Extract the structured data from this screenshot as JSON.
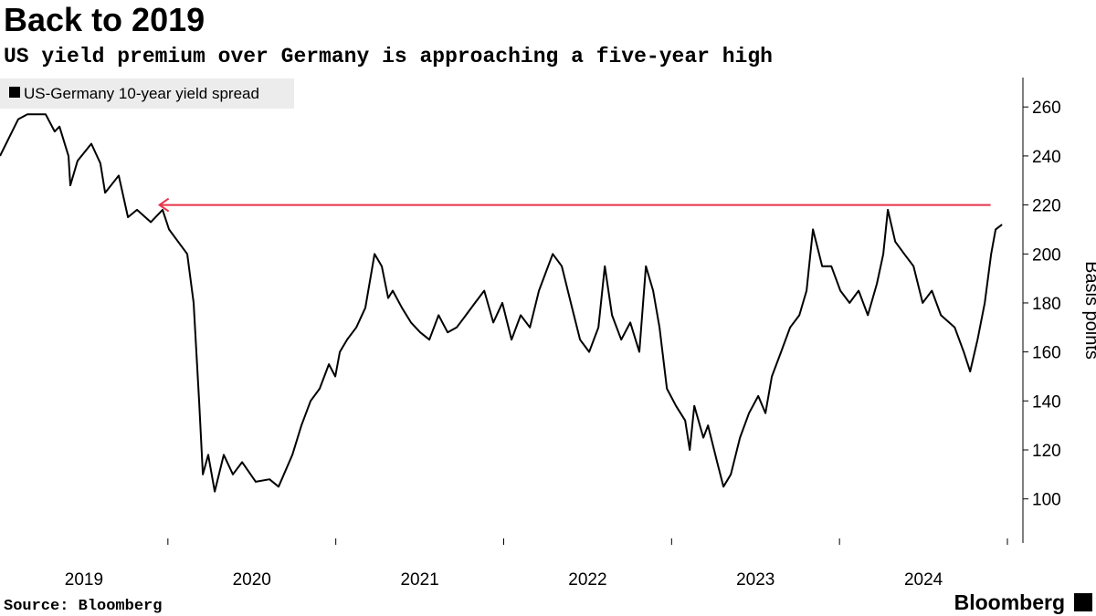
{
  "chart_data": {
    "type": "line",
    "title": "Back to 2019",
    "subtitle": "US yield premium over Germany is approaching a five-year high",
    "source": "Source: Bloomberg",
    "branding": "Bloomberg",
    "y_label": "Basis points",
    "y_axis_side": "right",
    "xlim": [
      2019,
      2025
    ],
    "ylim": [
      82,
      272
    ],
    "yticks": [
      100,
      120,
      140,
      160,
      180,
      200,
      220,
      240,
      260
    ],
    "xticks": [
      {
        "value": 2019.5,
        "label": "2019"
      },
      {
        "value": 2020.5,
        "label": "2020"
      },
      {
        "value": 2021.5,
        "label": "2021"
      },
      {
        "value": 2022.5,
        "label": "2022"
      },
      {
        "value": 2023.5,
        "label": "2023"
      },
      {
        "value": 2024.5,
        "label": "2024"
      }
    ],
    "annotation_line": {
      "y": 220,
      "x_start": 2019.95,
      "x_end": 2024.9,
      "color": "#e8334a"
    },
    "x": [
      2019.0,
      2019.109,
      2019.163,
      2019.272,
      2019.326,
      2019.354,
      2019.408,
      2019.419,
      2019.462,
      2019.544,
      2019.598,
      2019.626,
      2019.707,
      2019.762,
      2019.816,
      2019.898,
      2019.968,
      2020.007,
      2020.061,
      2020.115,
      2020.153,
      2020.186,
      2020.208,
      2020.24,
      2020.279,
      2020.333,
      2020.387,
      2020.442,
      2020.523,
      2020.605,
      2020.659,
      2020.741,
      2020.795,
      2020.85,
      2020.904,
      2020.959,
      2020.997,
      2021.024,
      2021.067,
      2021.122,
      2021.176,
      2021.231,
      2021.274,
      2021.312,
      2021.339,
      2021.394,
      2021.448,
      2021.503,
      2021.557,
      2021.612,
      2021.666,
      2021.72,
      2021.775,
      2021.829,
      2021.884,
      2021.938,
      2021.992,
      2022.047,
      2022.101,
      2022.156,
      2022.21,
      2022.292,
      2022.346,
      2022.4,
      2022.455,
      2022.509,
      2022.564,
      2022.602,
      2022.645,
      2022.7,
      2022.754,
      2022.808,
      2022.847,
      2022.89,
      2022.928,
      2022.972,
      2023.026,
      2023.081,
      2023.108,
      2023.135,
      2023.189,
      2023.217,
      2023.271,
      2023.309,
      2023.353,
      2023.407,
      2023.461,
      2023.516,
      2023.559,
      2023.597,
      2023.652,
      2023.706,
      2023.761,
      2023.804,
      2023.842,
      2023.897,
      2023.951,
      2024.005,
      2024.06,
      2024.114,
      2024.169,
      2024.223,
      2024.261,
      2024.288,
      2024.332,
      2024.386,
      2024.441,
      2024.495,
      2024.55,
      2024.604,
      2024.686,
      2024.74,
      2024.778,
      2024.822,
      2024.865,
      2024.903,
      2024.93,
      2024.968
    ],
    "series": [
      {
        "name": "US-Germany 10-year yield spread",
        "color": "#000000",
        "values": [
          240,
          255,
          257,
          257,
          250,
          252,
          240,
          228,
          238,
          245,
          237,
          225,
          232,
          215,
          218,
          213,
          218,
          210,
          205,
          200,
          180,
          140,
          110,
          118,
          103,
          118,
          110,
          115,
          107,
          108,
          105,
          118,
          130,
          140,
          145,
          155,
          150,
          160,
          165,
          170,
          178,
          200,
          195,
          182,
          185,
          178,
          172,
          168,
          165,
          175,
          168,
          170,
          175,
          180,
          185,
          172,
          180,
          165,
          175,
          170,
          185,
          200,
          195,
          180,
          165,
          160,
          170,
          195,
          175,
          165,
          172,
          160,
          195,
          185,
          170,
          145,
          138,
          132,
          120,
          138,
          125,
          130,
          115,
          105,
          110,
          125,
          135,
          142,
          135,
          150,
          160,
          170,
          175,
          185,
          210,
          195,
          195,
          185,
          180,
          185,
          175,
          188,
          200,
          218,
          205,
          200,
          195,
          180,
          185,
          175,
          170,
          160,
          152,
          165,
          180,
          200,
          210,
          212
        ]
      }
    ]
  }
}
